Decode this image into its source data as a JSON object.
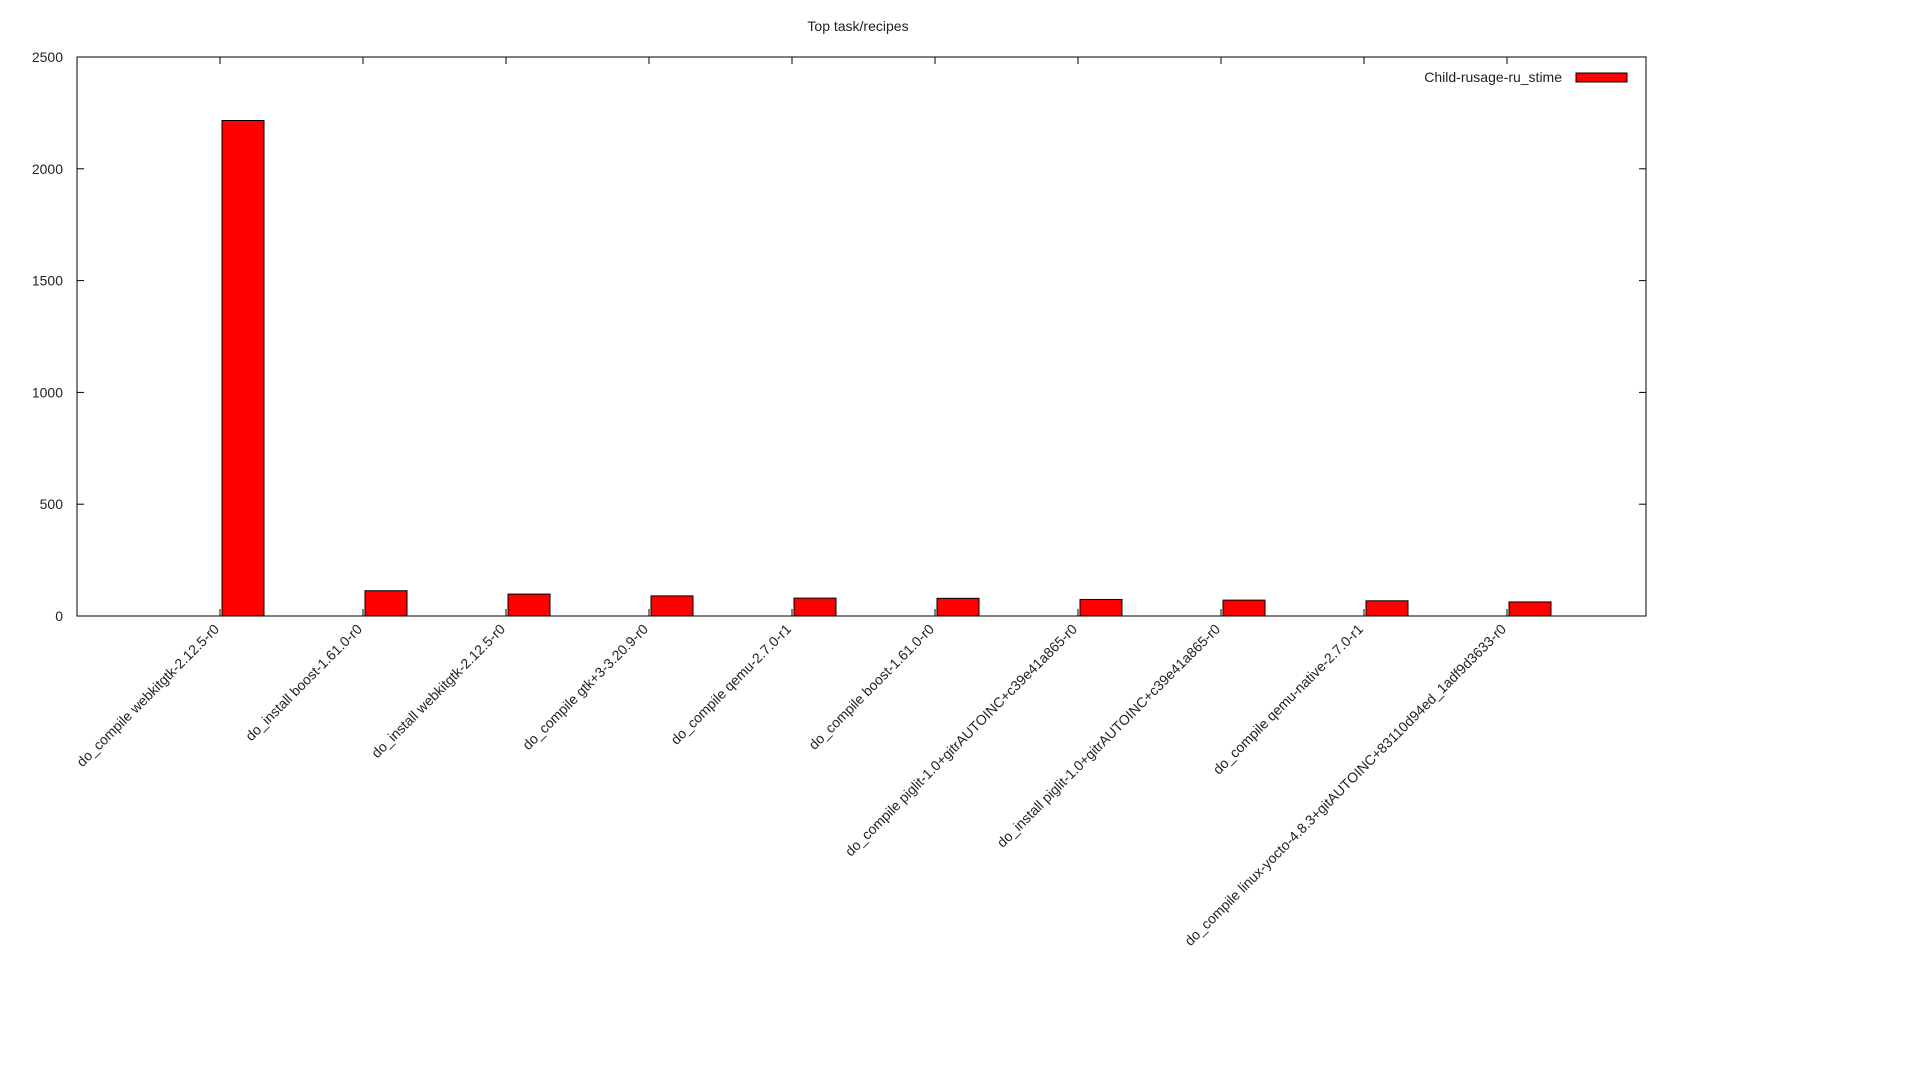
{
  "chart_data": {
    "type": "bar",
    "title": "Top task/recipes",
    "xlabel": "",
    "ylabel": "",
    "ylim": [
      0,
      2500
    ],
    "yticks": [
      0,
      500,
      1000,
      1500,
      2000,
      2500
    ],
    "grid": false,
    "legend_position": "top-right",
    "categories": [
      "do_compile webkitgtk-2.12.5-r0",
      "do_install boost-1.61.0-r0",
      "do_install webkitgtk-2.12.5-r0",
      "do_compile gtk+3-3.20.9-r0",
      "do_compile qemu-2.7.0-r1",
      "do_compile boost-1.61.0-r0",
      "do_compile piglit-1.0+gitrAUTOINC+c39e41a865-r0",
      "do_install piglit-1.0+gitrAUTOINC+c39e41a865-r0",
      "do_compile qemu-native-2.7.0-r1",
      "do_compile linux-yocto-4.8.3+gitAUTOINC+83110d94ed_1adf9d3633-r0"
    ],
    "series": [
      {
        "name": "Child-rusage-ru_stime",
        "color": "#ff0000",
        "values": [
          2216,
          113,
          98,
          90,
          80,
          79,
          74,
          71,
          68,
          63
        ]
      }
    ]
  }
}
